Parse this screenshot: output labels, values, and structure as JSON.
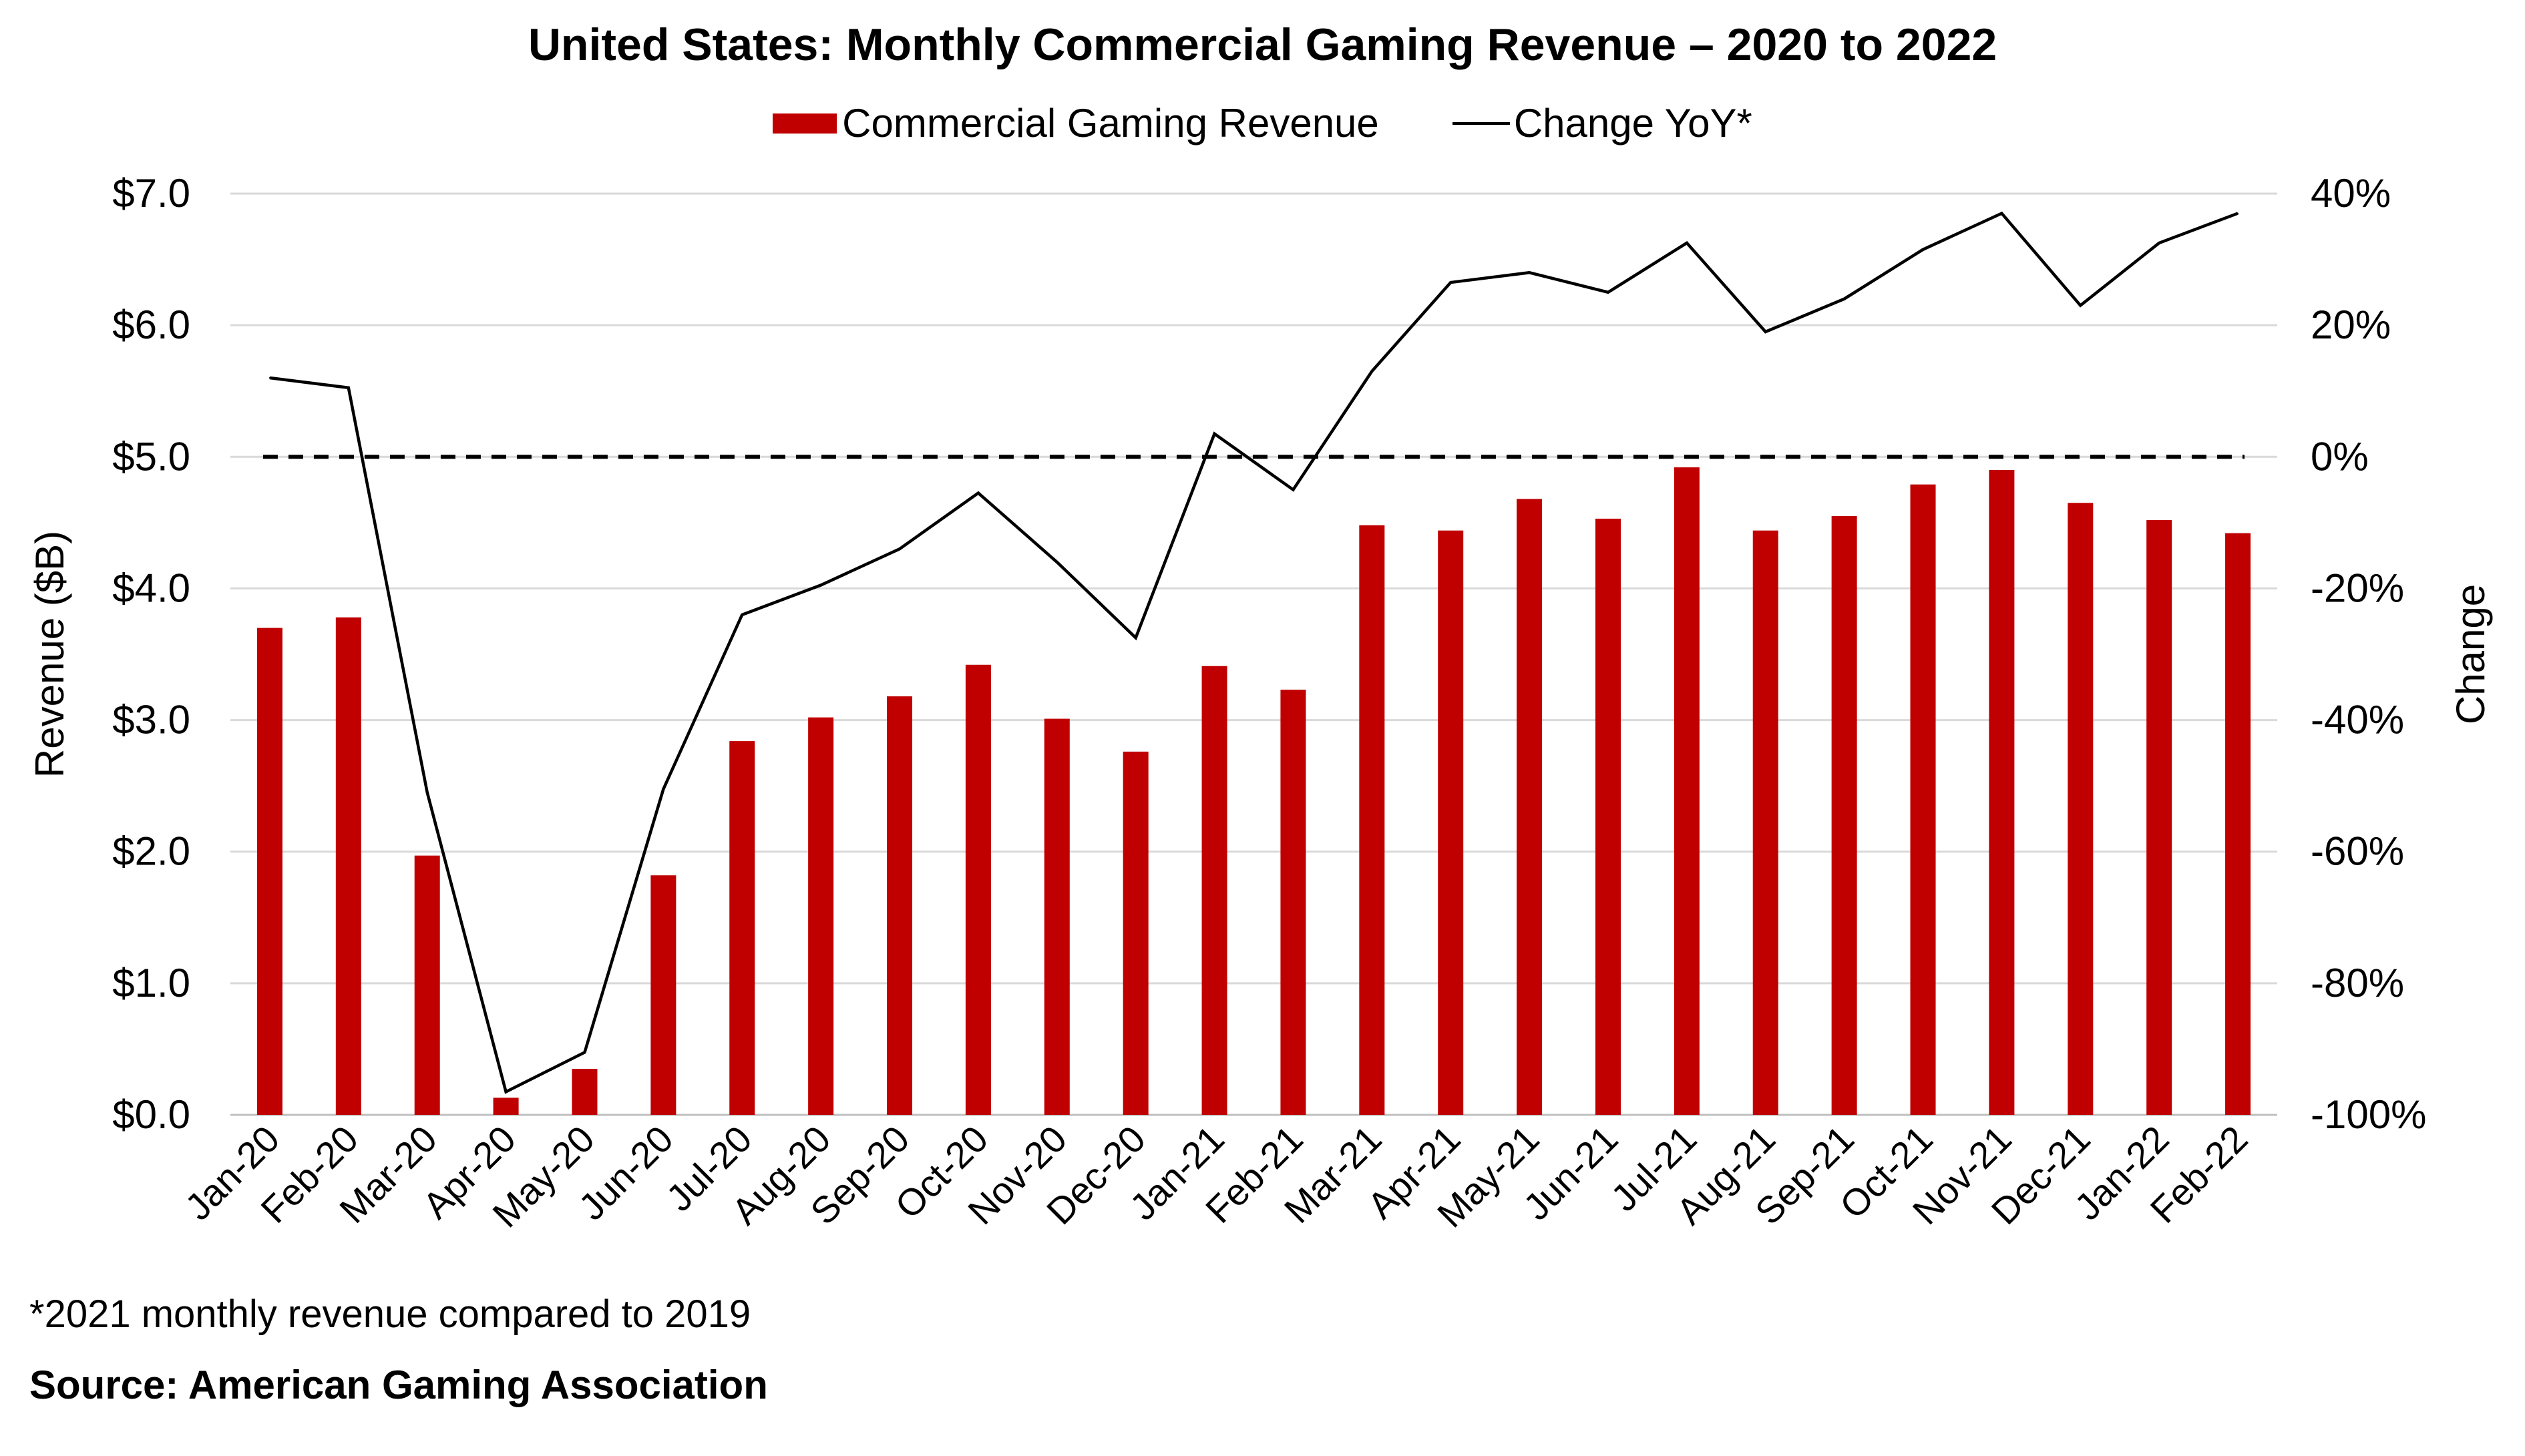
{
  "title": "United States: Monthly Commercial Gaming Revenue – 2020 to 2022",
  "legend": {
    "bar_label": "Commercial Gaming Revenue",
    "line_label": "Change YoY*"
  },
  "footnote": "*2021 monthly revenue compared to 2019",
  "source": "Source: American Gaming Association",
  "colors": {
    "bar": "#C00000",
    "line": "#000000",
    "grid": "#D9D9D9",
    "zero_line": "#000000"
  },
  "chart_data": {
    "type": "bar",
    "title": "United States: Monthly Commercial Gaming Revenue – 2020 to 2022",
    "categories": [
      "Jan-20",
      "Feb-20",
      "Mar-20",
      "Apr-20",
      "May-20",
      "Jun-20",
      "Jul-20",
      "Aug-20",
      "Sep-20",
      "Oct-20",
      "Nov-20",
      "Dec-20",
      "Jan-21",
      "Feb-21",
      "Mar-21",
      "Apr-21",
      "May-21",
      "Jun-21",
      "Jul-21",
      "Aug-21",
      "Sep-21",
      "Oct-21",
      "Nov-21",
      "Dec-21",
      "Jan-22",
      "Feb-22"
    ],
    "series": [
      {
        "name": "Commercial Gaming Revenue",
        "type": "bar",
        "axis": "left",
        "values": [
          3.7,
          3.78,
          1.97,
          0.13,
          0.35,
          1.82,
          2.84,
          3.02,
          3.18,
          3.42,
          3.01,
          2.76,
          3.41,
          3.23,
          4.48,
          4.44,
          4.68,
          4.53,
          4.92,
          4.44,
          4.55,
          4.79,
          4.9,
          4.65,
          4.52,
          4.42
        ]
      },
      {
        "name": "Change YoY*",
        "type": "line",
        "axis": "right",
        "values": [
          12,
          10.5,
          -51,
          -96.5,
          -90.5,
          -50.5,
          -24,
          -19.5,
          -14,
          -5.5,
          -16,
          -27.5,
          3.5,
          -5,
          13,
          26.5,
          28,
          25,
          32.5,
          19,
          24,
          31.5,
          37,
          23,
          32.5,
          37
        ]
      }
    ],
    "ylabel": "Revenue ($B)",
    "y2label": "Change",
    "ylim": [
      0,
      7
    ],
    "y2lim": [
      -100,
      40
    ],
    "yticks": [
      "$0.0",
      "$1.0",
      "$2.0",
      "$3.0",
      "$4.0",
      "$5.0",
      "$6.0",
      "$7.0"
    ],
    "y2ticks": [
      "-100%",
      "-80%",
      "-60%",
      "-40%",
      "-20%",
      "0%",
      "20%",
      "40%"
    ],
    "reference_line": {
      "axis": "right",
      "value": 0,
      "style": "dashed"
    },
    "grid": true,
    "legend_position": "top"
  }
}
